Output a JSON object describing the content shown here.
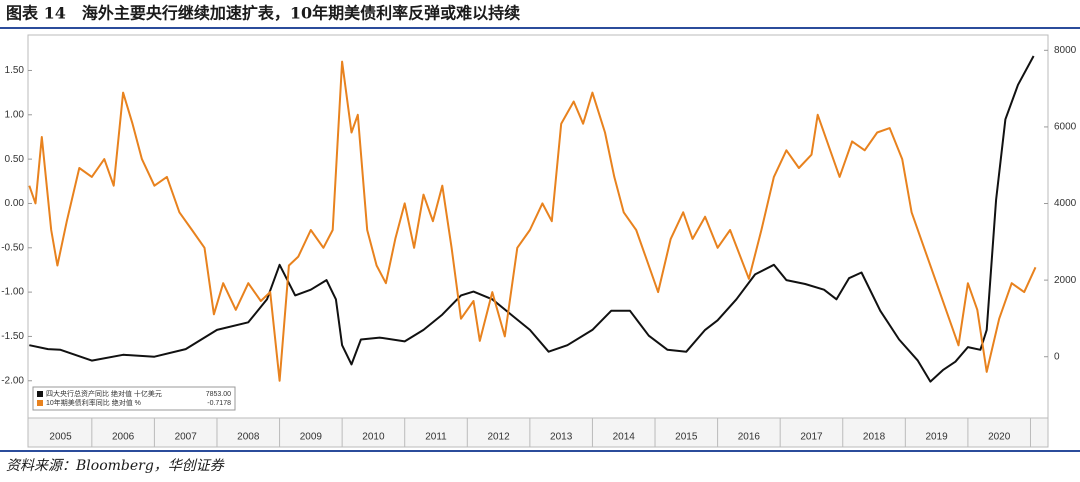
{
  "chart_data": {
    "type": "line",
    "title": "图表 14　海外主要央行继续加速扩表，10年期美债利率反弹或难以持续",
    "source": "资料来源：Bloomberg，华创证券",
    "xlim": [
      2004.98,
      2021.28
    ],
    "xticks": [
      {
        "value": 2005.5,
        "label": "2005"
      },
      {
        "value": 2006.5,
        "label": "2006"
      },
      {
        "value": 2007.5,
        "label": "2007"
      },
      {
        "value": 2008.5,
        "label": "2008"
      },
      {
        "value": 2009.5,
        "label": "2009"
      },
      {
        "value": 2010.5,
        "label": "2010"
      },
      {
        "value": 2011.5,
        "label": "2011"
      },
      {
        "value": 2012.5,
        "label": "2012"
      },
      {
        "value": 2013.5,
        "label": "2013"
      },
      {
        "value": 2014.5,
        "label": "2014"
      },
      {
        "value": 2015.5,
        "label": "2015"
      },
      {
        "value": 2016.5,
        "label": "2016"
      },
      {
        "value": 2017.5,
        "label": "2017"
      },
      {
        "value": 2018.5,
        "label": "2018"
      },
      {
        "value": 2019.5,
        "label": "2019"
      },
      {
        "value": 2020.5,
        "label": "2020"
      }
    ],
    "ylim": [
      -2.42,
      1.9
    ],
    "yticks": [
      {
        "value": -2,
        "label": "-2.00"
      },
      {
        "value": -1.5,
        "label": "-1.50"
      },
      {
        "value": -1,
        "label": "-1.00"
      },
      {
        "value": -0.5,
        "label": "-0.50"
      },
      {
        "value": 0,
        "label": "0.00"
      },
      {
        "value": 0.5,
        "label": "0.50"
      },
      {
        "value": 1,
        "label": "1.00"
      },
      {
        "value": 1.5,
        "label": "1.50"
      }
    ],
    "y2lim": [
      -1600,
      8400
    ],
    "y2ticks": [
      0,
      2000,
      4000,
      6000,
      8000
    ],
    "legend_position": "lower left",
    "series": [
      {
        "name": "四大央行总资产同比 绝对值 十亿美元",
        "legend_value": "7853.00",
        "color": "#111111",
        "axis": "y2",
        "x": [
          2005.0,
          2005.3,
          2005.5,
          2006.0,
          2006.5,
          2007.0,
          2007.5,
          2008.0,
          2008.5,
          2008.8,
          2009.0,
          2009.25,
          2009.5,
          2009.75,
          2009.9,
          2010.0,
          2010.15,
          2010.3,
          2010.6,
          2011.0,
          2011.3,
          2011.6,
          2011.9,
          2012.1,
          2012.4,
          2012.7,
          2013.0,
          2013.3,
          2013.6,
          2014.0,
          2014.3,
          2014.6,
          2014.9,
          2015.2,
          2015.5,
          2015.8,
          2016.0,
          2016.3,
          2016.6,
          2016.9,
          2017.1,
          2017.4,
          2017.7,
          2017.9,
          2018.1,
          2018.3,
          2018.6,
          2018.9,
          2019.2,
          2019.4,
          2019.6,
          2019.8,
          2020.0,
          2020.2,
          2020.3,
          2020.45,
          2020.6,
          2020.8,
          2021.05
        ],
        "values": [
          300,
          200,
          180,
          -100,
          50,
          0,
          200,
          700,
          900,
          1500,
          2400,
          1600,
          1750,
          2000,
          1500,
          300,
          -200,
          450,
          500,
          400,
          700,
          1100,
          1600,
          1700,
          1500,
          1100,
          700,
          130,
          300,
          700,
          1200,
          1200,
          550,
          180,
          130,
          700,
          950,
          1500,
          2150,
          2400,
          2000,
          1900,
          1750,
          1500,
          2050,
          2200,
          1200,
          450,
          -100,
          -650,
          -350,
          -130,
          250,
          180,
          700,
          4100,
          6200,
          7100,
          7853
        ]
      },
      {
        "name": "10年期美债利率同比 绝对值 %",
        "legend_value": "-0.7178",
        "color": "#e8821e",
        "axis": "y",
        "x": [
          2005.0,
          2005.1,
          2005.2,
          2005.35,
          2005.45,
          2005.6,
          2005.8,
          2006.0,
          2006.2,
          2006.35,
          2006.5,
          2006.65,
          2006.8,
          2007.0,
          2007.2,
          2007.4,
          2007.6,
          2007.8,
          2007.95,
          2008.1,
          2008.3,
          2008.5,
          2008.7,
          2008.85,
          2009.0,
          2009.15,
          2009.3,
          2009.5,
          2009.7,
          2009.85,
          2010.0,
          2010.15,
          2010.25,
          2010.4,
          2010.55,
          2010.7,
          2010.85,
          2011.0,
          2011.15,
          2011.3,
          2011.45,
          2011.6,
          2011.75,
          2011.9,
          2012.1,
          2012.2,
          2012.4,
          2012.6,
          2012.8,
          2013.0,
          2013.2,
          2013.35,
          2013.5,
          2013.7,
          2013.85,
          2014.0,
          2014.2,
          2014.35,
          2014.5,
          2014.7,
          2014.85,
          2015.05,
          2015.25,
          2015.45,
          2015.6,
          2015.8,
          2016.0,
          2016.2,
          2016.5,
          2016.7,
          2016.9,
          2017.1,
          2017.3,
          2017.5,
          2017.6,
          2017.8,
          2017.95,
          2018.15,
          2018.35,
          2018.55,
          2018.75,
          2018.95,
          2019.1,
          2019.3,
          2019.5,
          2019.7,
          2019.85,
          2020.0,
          2020.15,
          2020.3,
          2020.5,
          2020.7,
          2020.9,
          2021.08
        ],
        "values": [
          0.2,
          0.0,
          0.75,
          -0.3,
          -0.7,
          -0.2,
          0.4,
          0.3,
          0.5,
          0.2,
          1.25,
          0.9,
          0.5,
          0.2,
          0.3,
          -0.1,
          -0.3,
          -0.5,
          -1.25,
          -0.9,
          -1.2,
          -0.9,
          -1.1,
          -1.0,
          -2.0,
          -0.7,
          -0.6,
          -0.3,
          -0.5,
          -0.3,
          1.6,
          0.8,
          1.0,
          -0.3,
          -0.7,
          -0.9,
          -0.4,
          0.0,
          -0.5,
          0.1,
          -0.2,
          0.2,
          -0.5,
          -1.3,
          -1.1,
          -1.55,
          -1.0,
          -1.5,
          -0.5,
          -0.3,
          0.0,
          -0.2,
          0.9,
          1.15,
          0.9,
          1.25,
          0.8,
          0.3,
          -0.1,
          -0.3,
          -0.6,
          -1.0,
          -0.4,
          -0.1,
          -0.4,
          -0.15,
          -0.5,
          -0.3,
          -0.85,
          -0.3,
          0.3,
          0.6,
          0.4,
          0.55,
          1.0,
          0.6,
          0.3,
          0.7,
          0.6,
          0.8,
          0.85,
          0.5,
          -0.1,
          -0.5,
          -0.9,
          -1.3,
          -1.6,
          -0.9,
          -1.2,
          -1.9,
          -1.3,
          -0.9,
          -1.0,
          -0.72
        ]
      }
    ]
  }
}
